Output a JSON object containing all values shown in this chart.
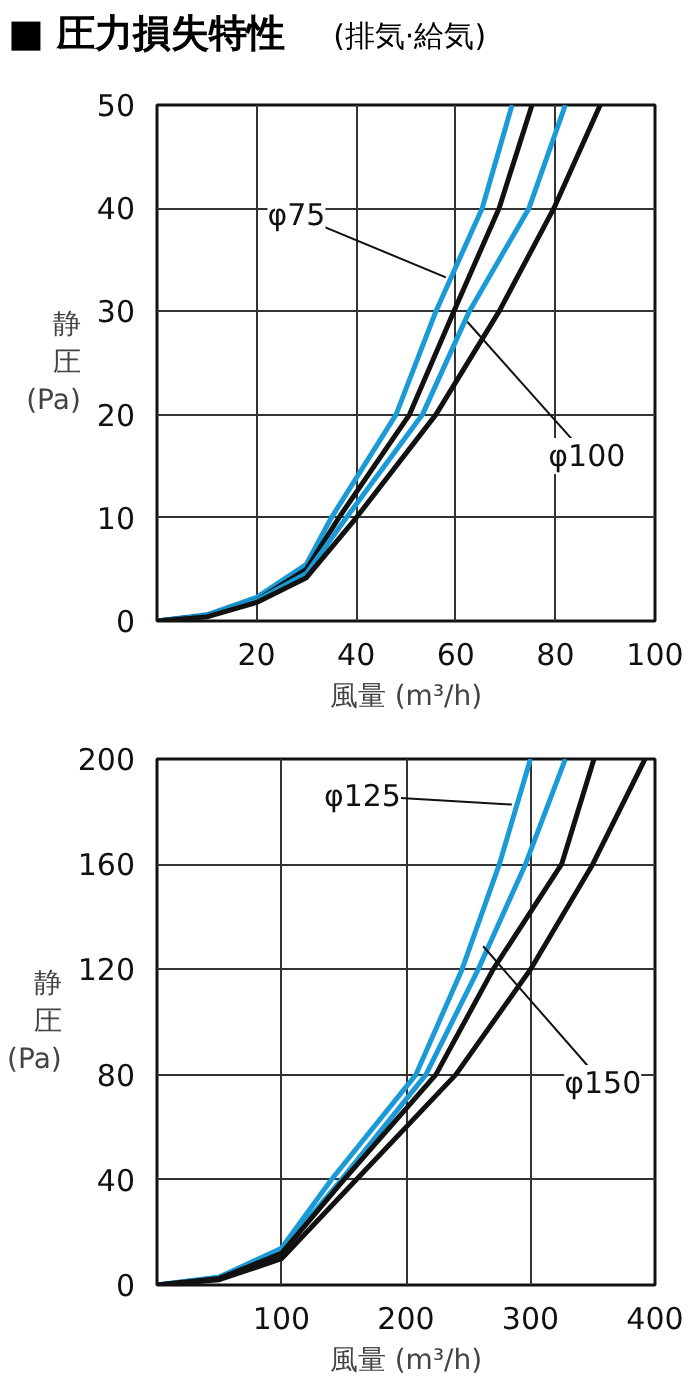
{
  "chart_data": [
    {
      "type": "line",
      "title": "■ 圧力損失特性",
      "subtitle": "(排気·給気)",
      "xlabel": "風量 (m³/h)",
      "ylabel": "静圧(Pa)",
      "xlim": [
        0,
        100
      ],
      "ylim": [
        0,
        50
      ],
      "xticks": [
        20,
        40,
        60,
        80,
        100
      ],
      "yticks": [
        0,
        10,
        20,
        30,
        40,
        50
      ],
      "grid": true,
      "marker": "none",
      "line_style": "solid",
      "series": [
        {
          "color": "#1a9ad6",
          "x": [
            0,
            10,
            20,
            30,
            35,
            48,
            56,
            65.3,
            71.3
          ],
          "values": [
            0,
            0.6,
            2.3,
            5.5,
            10,
            20,
            30,
            40,
            50
          ]
        },
        {
          "color": "#111111",
          "x": [
            0,
            10,
            20,
            30,
            36.5,
            50.7,
            59.6,
            68.7,
            75.3
          ],
          "values": [
            0,
            0.5,
            2,
            5,
            10,
            20,
            30,
            40,
            50
          ]
        },
        {
          "color": "#1a9ad6",
          "x": [
            0,
            10,
            20,
            30,
            38,
            53.3,
            62.7,
            74.7,
            82
          ],
          "values": [
            0,
            0.5,
            2,
            4.6,
            10,
            20,
            30,
            40,
            50
          ]
        },
        {
          "color": "#111111",
          "x": [
            0,
            10,
            20,
            30,
            40,
            56,
            68.7,
            79.7,
            89
          ],
          "values": [
            0,
            0.4,
            1.8,
            4.2,
            10,
            20,
            30,
            40,
            50
          ]
        }
      ],
      "annotations": [
        {
          "text": "φ75",
          "x": 58,
          "y": 33.3
        },
        {
          "text": "φ100",
          "x": 62.3,
          "y": 29
        }
      ]
    },
    {
      "type": "line",
      "xlabel": "風量 (m³/h)",
      "ylabel": "静圧(Pa)",
      "xlim": [
        0,
        400
      ],
      "ylim": [
        0,
        200
      ],
      "xticks": [
        100,
        200,
        300,
        400
      ],
      "yticks": [
        0,
        40,
        80,
        120,
        160,
        200
      ],
      "grid": true,
      "marker": "none",
      "line_style": "solid",
      "series": [
        {
          "color": "#1a9ad6",
          "x": [
            0,
            50,
            100,
            140,
            208,
            245,
            275,
            300
          ],
          "values": [
            0,
            3,
            14,
            40,
            80,
            120,
            160,
            200
          ]
        },
        {
          "color": "#1a9ad6",
          "x": [
            0,
            50,
            100,
            148,
            216,
            258,
            296,
            328
          ],
          "values": [
            0,
            3,
            13,
            40,
            80,
            120,
            160,
            200
          ]
        },
        {
          "color": "#111111",
          "x": [
            0,
            50,
            100,
            150,
            224,
            270,
            325,
            351
          ],
          "values": [
            0,
            2.5,
            12,
            40,
            80,
            120,
            160,
            200
          ]
        },
        {
          "color": "#111111",
          "x": [
            0,
            50,
            100,
            160,
            240,
            300,
            350,
            392
          ],
          "values": [
            0,
            2,
            10,
            40,
            80,
            120,
            160,
            200
          ]
        }
      ],
      "annotations": [
        {
          "text": "φ125",
          "x": 285,
          "y": 182.7
        },
        {
          "text": "φ150",
          "x": 262,
          "y": 128.8
        }
      ]
    }
  ]
}
